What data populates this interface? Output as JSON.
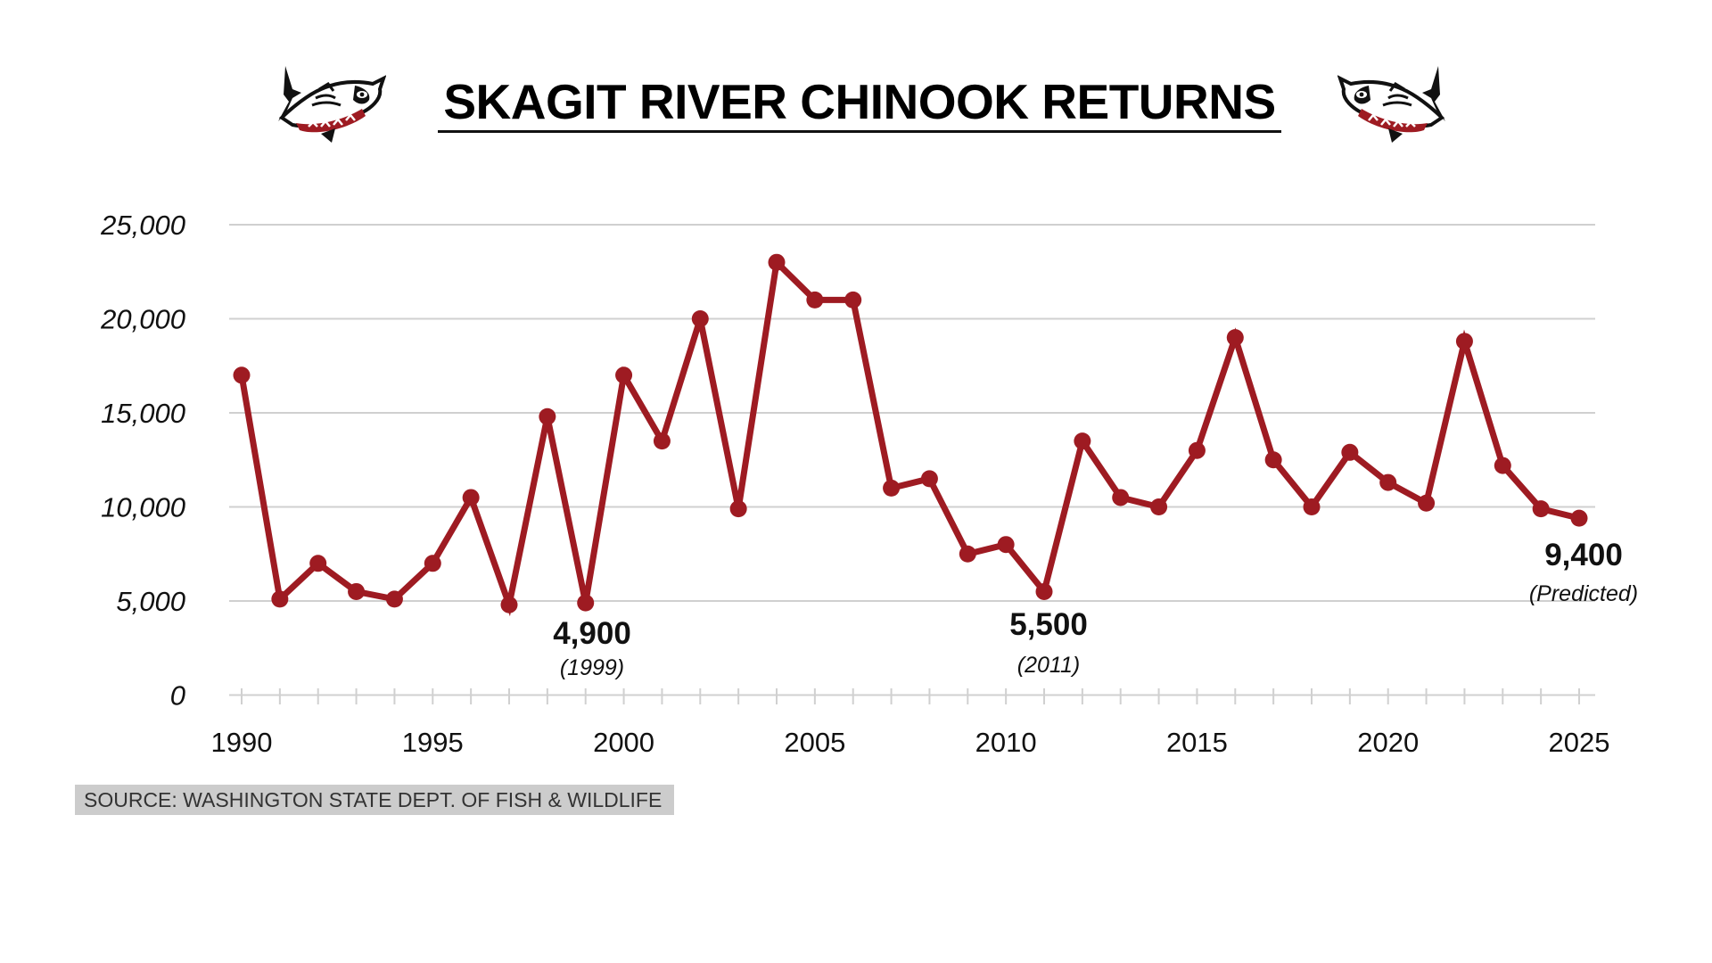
{
  "header": {
    "title": "SKAGIT RIVER CHINOOK RETURNS",
    "left_icon": "salmon-icon",
    "right_icon": "salmon-icon"
  },
  "footer": {
    "source": "SOURCE: WASHINGTON STATE DEPT. OF FISH & WILDLIFE"
  },
  "colors": {
    "line": "#9e1b22",
    "grid": "#d0d0d0",
    "text": "#111111",
    "source_bg": "#cccccc",
    "source_text": "#333333"
  },
  "chart_data": {
    "type": "line",
    "title": "SKAGIT RIVER CHINOOK RETURNS",
    "xlabel": "",
    "ylabel": "",
    "ylim": [
      0,
      25000
    ],
    "xlim": [
      1990,
      2025
    ],
    "grid": true,
    "legend": null,
    "yticks": [
      0,
      5000,
      10000,
      15000,
      20000,
      25000
    ],
    "ytick_labels": [
      "0",
      "5,000",
      "10,000",
      "15,000",
      "20,000",
      "25,000"
    ],
    "xticks": [
      1990,
      1995,
      2000,
      2005,
      2010,
      2015,
      2020,
      2025
    ],
    "xtick_labels": [
      "1990",
      "1995",
      "2000",
      "2005",
      "2010",
      "2015",
      "2020",
      "2025"
    ],
    "x": [
      1990,
      1991,
      1992,
      1993,
      1994,
      1995,
      1996,
      1997,
      1998,
      1999,
      2000,
      2001,
      2002,
      2003,
      2004,
      2005,
      2006,
      2007,
      2008,
      2009,
      2010,
      2011,
      2012,
      2013,
      2014,
      2015,
      2016,
      2017,
      2018,
      2019,
      2020,
      2021,
      2022,
      2023,
      2024,
      2025
    ],
    "series": [
      {
        "name": "Chinook returns",
        "values": [
          17000,
          5100,
          7000,
          5500,
          5100,
          7000,
          10500,
          4800,
          14800,
          4900,
          17000,
          13500,
          20000,
          9900,
          23000,
          21000,
          21000,
          11000,
          11500,
          7500,
          8000,
          5500,
          13500,
          10500,
          10000,
          13000,
          19000,
          12500,
          10000,
          12900,
          11300,
          10200,
          18800,
          12200,
          9900,
          9400
        ]
      }
    ],
    "annotations": [
      {
        "year": 1999,
        "value_label": "4,900",
        "sub_label": "(1999)"
      },
      {
        "year": 2011,
        "value_label": "5,500",
        "sub_label": "(2011)"
      },
      {
        "year": 2025,
        "value_label": "9,400",
        "sub_label": "(Predicted)"
      }
    ]
  }
}
